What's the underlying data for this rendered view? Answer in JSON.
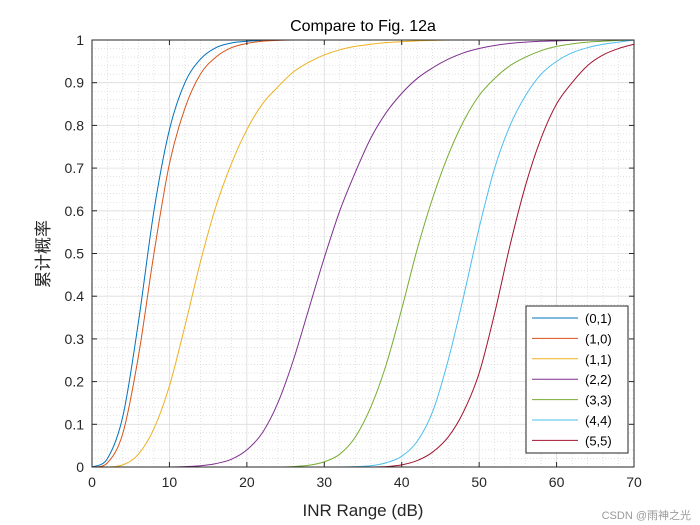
{
  "chart_data": {
    "type": "line",
    "title": "Compare to Fig. 12a",
    "xlabel": "INR Range (dB)",
    "ylabel": "累计概率",
    "xlim": [
      0,
      70
    ],
    "ylim": [
      0,
      1
    ],
    "xticks": [
      0,
      10,
      20,
      30,
      40,
      50,
      60,
      70
    ],
    "yticks": [
      0,
      0.1,
      0.2,
      0.3,
      0.4,
      0.5,
      0.6,
      0.7,
      0.8,
      0.9,
      1
    ],
    "grid": true,
    "minor_grid": true,
    "legend_position": "bottom-right",
    "x": [
      0,
      2,
      4,
      6,
      8,
      10,
      12,
      14,
      16,
      18,
      20,
      22,
      24,
      26,
      28,
      30,
      32,
      34,
      36,
      38,
      40,
      42,
      44,
      46,
      48,
      50,
      52,
      54,
      56,
      58,
      60,
      62,
      64,
      66,
      68,
      70
    ],
    "series": [
      {
        "name": "(0,1)",
        "color": "#0072BD",
        "values": [
          0,
          0.02,
          0.12,
          0.34,
          0.6,
          0.79,
          0.9,
          0.955,
          0.982,
          0.993,
          0.997,
          0.999,
          1,
          1,
          1,
          1,
          1,
          1,
          1,
          1,
          1,
          1,
          1,
          1,
          1,
          1,
          1,
          1,
          1,
          1,
          1,
          1,
          1,
          1,
          1,
          1
        ]
      },
      {
        "name": "(1,0)",
        "color": "#D95319",
        "values": [
          0,
          0.01,
          0.08,
          0.26,
          0.5,
          0.71,
          0.84,
          0.92,
          0.96,
          0.982,
          0.992,
          0.997,
          0.999,
          1,
          1,
          1,
          1,
          1,
          1,
          1,
          1,
          1,
          1,
          1,
          1,
          1,
          1,
          1,
          1,
          1,
          1,
          1,
          1,
          1,
          1,
          1
        ]
      },
      {
        "name": "(1,1)",
        "color": "#EDB120",
        "values": [
          0,
          0,
          0.005,
          0.03,
          0.09,
          0.19,
          0.33,
          0.48,
          0.61,
          0.71,
          0.79,
          0.85,
          0.89,
          0.925,
          0.948,
          0.965,
          0.977,
          0.985,
          0.99,
          0.994,
          0.996,
          0.998,
          0.999,
          1,
          1,
          1,
          1,
          1,
          1,
          1,
          1,
          1,
          1,
          1,
          1,
          1
        ]
      },
      {
        "name": "(2,2)",
        "color": "#7E2F8E",
        "values": [
          0,
          0,
          0,
          0,
          0,
          0,
          0.001,
          0.003,
          0.008,
          0.018,
          0.04,
          0.08,
          0.15,
          0.25,
          0.37,
          0.49,
          0.6,
          0.69,
          0.77,
          0.83,
          0.875,
          0.91,
          0.935,
          0.955,
          0.97,
          0.98,
          0.987,
          0.992,
          0.995,
          0.997,
          0.998,
          0.999,
          1,
          1,
          1,
          1
        ]
      },
      {
        "name": "(3,3)",
        "color": "#77AC30",
        "values": [
          0,
          0,
          0,
          0,
          0,
          0,
          0,
          0,
          0,
          0,
          0,
          0,
          0,
          0.001,
          0.004,
          0.012,
          0.03,
          0.07,
          0.14,
          0.24,
          0.37,
          0.51,
          0.63,
          0.73,
          0.81,
          0.87,
          0.91,
          0.94,
          0.96,
          0.975,
          0.985,
          0.991,
          0.995,
          0.997,
          0.999,
          1
        ]
      },
      {
        "name": "(4,4)",
        "color": "#4DBEEE",
        "values": [
          0,
          0,
          0,
          0,
          0,
          0,
          0,
          0,
          0,
          0,
          0,
          0,
          0,
          0,
          0,
          0,
          0,
          0.001,
          0.003,
          0.01,
          0.025,
          0.06,
          0.13,
          0.25,
          0.4,
          0.56,
          0.7,
          0.8,
          0.87,
          0.92,
          0.95,
          0.97,
          0.982,
          0.99,
          0.995,
          1
        ]
      },
      {
        "name": "(5,5)",
        "color": "#A2142F",
        "values": [
          0,
          0,
          0,
          0,
          0,
          0,
          0,
          0,
          0,
          0,
          0,
          0,
          0,
          0,
          0,
          0,
          0,
          0,
          0,
          0.001,
          0.005,
          0.015,
          0.035,
          0.07,
          0.13,
          0.22,
          0.36,
          0.52,
          0.66,
          0.77,
          0.85,
          0.9,
          0.94,
          0.965,
          0.98,
          0.99
        ]
      }
    ]
  },
  "watermark": "CSDN @雨神之光"
}
